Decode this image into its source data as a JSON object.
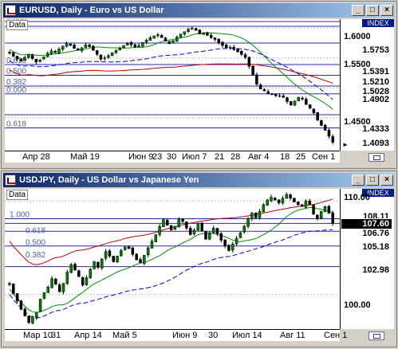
{
  "colors": {
    "title_gradient_start": "#0a246a",
    "title_gradient_end": "#a6caf0",
    "hline": "#2a2aa0",
    "fibo": "#5060a0",
    "candle_up": "#008000",
    "candle_down": "#000000",
    "ma_red": "#c00000",
    "ma_green": "#009000",
    "ma_blue": "#0000e0"
  },
  "window_buttons": {
    "minimize": "_",
    "maximize": "□",
    "close": "×"
  },
  "charts": [
    {
      "title": "EURUSD, Daily - Euro vs US Dollar",
      "data_tag": "Data",
      "index_label": "INDEX",
      "price_ticks": [
        "1.6000",
        "1.5500",
        "1.4500"
      ],
      "price_tags": [
        {
          "label": "1.5753",
          "bg": "#ffffff",
          "fg": "#000000"
        },
        {
          "label": "1.5391",
          "bg": "#ffffff",
          "fg": "#000000"
        },
        {
          "label": "1.5210",
          "bg": "#ffffff",
          "fg": "#000000"
        },
        {
          "label": "1.5028",
          "bg": "#ffffff",
          "fg": "#000000"
        },
        {
          "label": "1.4902",
          "bg": "#ffffff",
          "fg": "#000000"
        },
        {
          "label": "1.4333",
          "bg": "#ffffff",
          "fg": "#000000"
        },
        {
          "label": "1.4093",
          "bg": "#ffffff",
          "fg": "#000000"
        }
      ],
      "fibo_labels": [
        "1.000",
        "0.618",
        "0.500",
        "0.382",
        "0.000",
        "0.618"
      ],
      "x_labels": [
        "Апр 28",
        "Май 19",
        "Июн 9",
        "23",
        "30",
        "Июл 7",
        "21",
        "28",
        "Авг 4",
        "18",
        "25",
        "Сен 1"
      ],
      "chart_data": {
        "type": "candlestick",
        "symbol": "EURUSD",
        "timeframe": "Daily",
        "y_range": [
          1.395,
          1.615
        ],
        "close": [
          1.56,
          1.553,
          1.548,
          1.545,
          1.551,
          1.556,
          1.549,
          1.543,
          1.547,
          1.552,
          1.558,
          1.562,
          1.559,
          1.565,
          1.57,
          1.574,
          1.571,
          1.566,
          1.563,
          1.567,
          1.572,
          1.569,
          1.563,
          1.556,
          1.548,
          1.55,
          1.554,
          1.559,
          1.563,
          1.566,
          1.571,
          1.575,
          1.572,
          1.568,
          1.571,
          1.576,
          1.58,
          1.584,
          1.587,
          1.589,
          1.584,
          1.578,
          1.574,
          1.579,
          1.585,
          1.59,
          1.594,
          1.598,
          1.6,
          1.596,
          1.59,
          1.592,
          1.588,
          1.584,
          1.581,
          1.576,
          1.571,
          1.567,
          1.568,
          1.564,
          1.56,
          1.556,
          1.551,
          1.536,
          1.522,
          1.506,
          1.498,
          1.495,
          1.491,
          1.489,
          1.487,
          1.487,
          1.484,
          1.477,
          1.471,
          1.478,
          1.484,
          1.481,
          1.472,
          1.466,
          1.458,
          1.446,
          1.437,
          1.429,
          1.419,
          1.409
        ]
      }
    },
    {
      "title": "USDJPY, Daily - US Dollar vs Japanese Yen",
      "data_tag": "Data",
      "index_label": "INDEX",
      "price_ticks": [
        "110.00",
        "100.00"
      ],
      "price_tags": [
        {
          "label": "108.11",
          "bg": "#ffffff",
          "fg": "#000000"
        },
        {
          "label": "107.60",
          "bg": "#000000",
          "fg": "#ffffff"
        },
        {
          "label": "106.76",
          "bg": "#ffffff",
          "fg": "#000000"
        },
        {
          "label": "105.18",
          "bg": "#ffffff",
          "fg": "#000000"
        },
        {
          "label": "102.98",
          "bg": "#ffffff",
          "fg": "#000000"
        }
      ],
      "fibo_labels": [
        "1.000",
        "0.618",
        "0.500",
        "0.382"
      ],
      "x_labels": [
        "Мар 10",
        "31",
        "Апр 14",
        "Май 5",
        "Июн 9",
        "30",
        "Июл 14",
        "Авг 11",
        "Сен 1"
      ],
      "chart_data": {
        "type": "candlestick",
        "symbol": "USDJPY",
        "timeframe": "Daily",
        "y_range": [
          96.3,
          111.3
        ],
        "close": [
          101.2,
          100.1,
          99.3,
          98.4,
          97.7,
          97.0,
          97.6,
          98.1,
          99.5,
          100.2,
          100.8,
          101.7,
          101.1,
          100.3,
          101.2,
          102.4,
          103.2,
          102.6,
          101.9,
          101.0,
          101.8,
          102.7,
          103.5,
          102.9,
          103.8,
          104.6,
          104.1,
          103.5,
          104.1,
          104.7,
          105.1,
          104.9,
          104.3,
          103.7,
          103.4,
          104.2,
          105.0,
          105.7,
          106.4,
          107.3,
          108.0,
          107.4,
          106.9,
          107.3,
          108.1,
          107.8,
          107.1,
          106.4,
          106.9,
          107.6,
          106.8,
          105.9,
          106.6,
          107.1,
          106.5,
          105.8,
          105.2,
          104.7,
          105.4,
          106.0,
          106.6,
          107.3,
          108.1,
          108.7,
          108.2,
          108.9,
          109.6,
          110.1,
          110.4,
          110.1,
          109.8,
          110.3,
          110.7,
          110.3,
          109.9,
          109.6,
          109.4,
          110.0,
          109.6,
          108.6,
          108.1,
          108.9,
          109.4,
          108.7,
          107.6
        ]
      }
    }
  ]
}
